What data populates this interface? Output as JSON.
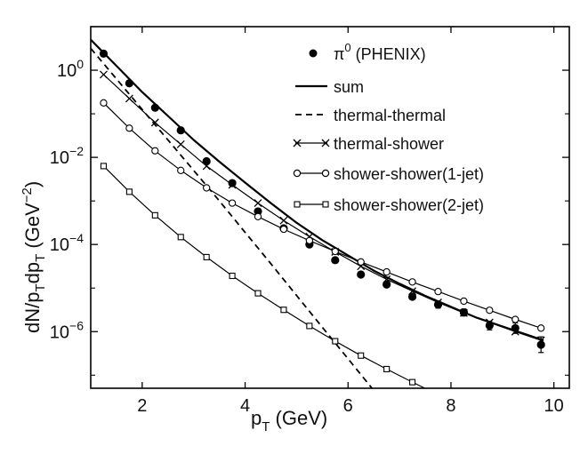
{
  "chart_data": {
    "type": "line",
    "xlabel_main": "p",
    "xlabel_sub": "T",
    "xlabel_unit": " (GeV)",
    "ylabel_parts": [
      "dN/p",
      "T",
      "dp",
      "T",
      " (GeV",
      "−2",
      ")"
    ],
    "xlim": [
      1,
      10.3
    ],
    "ylim_log10": [
      -7.3,
      1.0
    ],
    "yscale": "log",
    "grid": false,
    "legend_placement": "top-right",
    "x_ticks": [
      2,
      4,
      6,
      8,
      10
    ],
    "x_tick_labels": [
      "2",
      "4",
      "6",
      "8",
      "10"
    ],
    "y_ticks_log10": [
      0,
      -2,
      -4,
      -6
    ],
    "y_tick_base": "10",
    "y_tick_exps": [
      "0",
      "−2",
      "−4",
      "−6"
    ],
    "series": [
      {
        "name": "π⁰ (PHENIX)",
        "legend_main": "π",
        "legend_sup": "0",
        "legend_tail": " (PHENIX)",
        "style": "points-filled",
        "x": [
          1.25,
          1.75,
          2.25,
          2.75,
          3.25,
          3.75,
          4.25,
          4.75,
          5.25,
          5.75,
          6.25,
          6.75,
          7.25,
          7.75,
          8.25,
          8.75,
          9.25,
          9.75
        ],
        "log10_y": [
          0.38,
          -0.3,
          -0.86,
          -1.38,
          -2.09,
          -2.59,
          -3.24,
          -3.63,
          -4.0,
          -4.36,
          -4.69,
          -4.92,
          -5.2,
          -5.38,
          -5.56,
          -5.86,
          -5.92,
          -6.3
        ],
        "err_log10": [
          0,
          0,
          0,
          0,
          0,
          0,
          0,
          0,
          0,
          0,
          0,
          0,
          0,
          0.08,
          0.08,
          0.1,
          0.12,
          0.18
        ]
      },
      {
        "name": "sum",
        "style": "solid-thick",
        "x": [
          1.0,
          1.5,
          2.0,
          2.5,
          3.0,
          3.5,
          4.0,
          4.5,
          5.0,
          5.5,
          6.0,
          6.5,
          7.0,
          7.5,
          8.0,
          8.5,
          9.0,
          9.5,
          9.8
        ],
        "log10_y": [
          0.7,
          0.1,
          -0.5,
          -1.05,
          -1.6,
          -2.1,
          -2.58,
          -3.05,
          -3.5,
          -3.9,
          -4.25,
          -4.6,
          -4.9,
          -5.18,
          -5.43,
          -5.68,
          -5.88,
          -6.08,
          -6.2
        ]
      },
      {
        "name": "thermal-thermal",
        "style": "dashed",
        "x": [
          1.0,
          1.5,
          2.0,
          2.5,
          3.0,
          3.5,
          4.0,
          4.5,
          5.0,
          5.5,
          6.0,
          6.5,
          6.7
        ],
        "log10_y": [
          0.5,
          -0.2,
          -0.9,
          -1.6,
          -2.3,
          -3.0,
          -3.72,
          -4.44,
          -5.17,
          -5.9,
          -6.62,
          -7.35,
          -7.6
        ]
      },
      {
        "name": "thermal-shower",
        "style": "solid-x",
        "x": [
          1.25,
          1.75,
          2.25,
          2.75,
          3.25,
          3.75,
          4.25,
          4.75,
          5.25,
          5.75,
          6.25,
          6.75,
          7.25,
          7.75,
          8.25,
          8.75,
          9.25,
          9.75
        ],
        "log10_y": [
          -0.1,
          -0.65,
          -1.2,
          -1.7,
          -2.2,
          -2.63,
          -3.05,
          -3.45,
          -3.82,
          -4.17,
          -4.5,
          -4.8,
          -5.07,
          -5.33,
          -5.57,
          -5.79,
          -6.0,
          -6.2
        ]
      },
      {
        "name": "shower-shower(1-jet)",
        "style": "solid-circle",
        "x": [
          1.25,
          1.75,
          2.25,
          2.75,
          3.25,
          3.75,
          4.25,
          4.75,
          5.25,
          5.75,
          6.25,
          6.75,
          7.25,
          7.75,
          8.25,
          8.75,
          9.25,
          9.75
        ],
        "log10_y": [
          -0.75,
          -1.33,
          -1.85,
          -2.3,
          -2.7,
          -3.05,
          -3.36,
          -3.65,
          -3.91,
          -4.16,
          -4.4,
          -4.63,
          -4.86,
          -5.08,
          -5.3,
          -5.51,
          -5.72,
          -5.92
        ]
      },
      {
        "name": "shower-shower(2-jet)",
        "style": "solid-square",
        "x": [
          1.25,
          1.75,
          2.25,
          2.75,
          3.25,
          3.75,
          4.25,
          4.75,
          5.25,
          5.75,
          6.25,
          6.75,
          7.25,
          7.75
        ],
        "log10_y": [
          -2.2,
          -2.79,
          -3.33,
          -3.83,
          -4.29,
          -4.72,
          -5.12,
          -5.5,
          -5.87,
          -6.22,
          -6.55,
          -6.86,
          -7.16,
          -7.45
        ]
      }
    ]
  }
}
